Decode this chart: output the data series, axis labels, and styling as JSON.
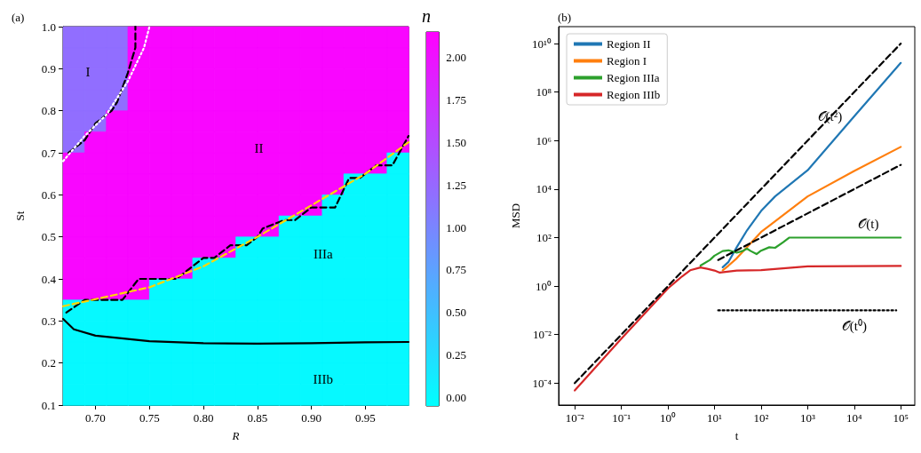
{
  "chart_data": [
    {
      "type": "heatmap",
      "title": "(a)",
      "xlabel": "R",
      "ylabel": "St",
      "clabel": "n",
      "xlim": [
        0.67,
        0.99
      ],
      "xticks": [
        {
          "value": 0.7,
          "label": "0.70"
        },
        {
          "value": 0.75,
          "label": "0.75"
        },
        {
          "value": 0.8,
          "label": "0.80"
        },
        {
          "value": 0.85,
          "label": "0.85"
        },
        {
          "value": 0.9,
          "label": "0.90"
        },
        {
          "value": 0.95,
          "label": "0.95"
        }
      ],
      "ylim": [
        0.1,
        1.0
      ],
      "yticks": [
        0.1,
        0.2,
        0.3,
        0.4,
        0.5,
        0.6,
        0.7,
        0.8,
        0.9,
        {
          "value": 1.0,
          "label": "1.0"
        }
      ],
      "clim": [
        -0.05,
        2.15
      ],
      "cticks": [
        {
          "value": 0,
          "label": "0.00"
        },
        {
          "value": 0.25,
          "label": "0.25"
        },
        {
          "value": 0.5,
          "label": "0.50"
        },
        {
          "value": 0.75,
          "label": "0.75"
        },
        {
          "value": 1,
          "label": "1.00"
        },
        {
          "value": 1.25,
          "label": "1.25"
        },
        {
          "value": 1.5,
          "label": "1.50"
        },
        {
          "value": 1.75,
          "label": "1.75"
        },
        {
          "value": 2,
          "label": "2.00"
        }
      ],
      "cells": [
        [
          1.2,
          1.2,
          1.2,
          2.1,
          2.1,
          2.1,
          2.1,
          2.1,
          2.1,
          2.1,
          2.1,
          2.1,
          2.1,
          2.1,
          2.1,
          2.1
        ],
        [
          1.2,
          1.2,
          1.2,
          2.1,
          2.1,
          2.1,
          2.1,
          2.1,
          2.1,
          2.1,
          2.1,
          2.1,
          2.1,
          2.1,
          2.1,
          2.1
        ],
        [
          1.2,
          1.2,
          1.2,
          2.1,
          2.1,
          2.1,
          2.1,
          2.1,
          2.1,
          2.1,
          2.1,
          2.1,
          2.1,
          2.1,
          2.1,
          2.1
        ],
        [
          1.2,
          1.2,
          1.2,
          2.1,
          2.1,
          2.1,
          2.1,
          2.1,
          2.1,
          2.1,
          2.1,
          2.1,
          2.1,
          2.1,
          2.1,
          2.1
        ],
        [
          1.2,
          1.2,
          2.1,
          2.1,
          2.1,
          2.1,
          2.1,
          2.1,
          2.1,
          2.1,
          2.1,
          2.1,
          2.1,
          2.1,
          2.1,
          2.1
        ],
        [
          1.2,
          2.1,
          2.1,
          2.1,
          2.1,
          2.1,
          2.1,
          2.1,
          2.1,
          2.1,
          2.1,
          2.1,
          2.1,
          2.1,
          2.1,
          2.1
        ],
        [
          2.1,
          2.1,
          2.1,
          2.1,
          2.1,
          2.1,
          2.1,
          2.1,
          2.1,
          2.1,
          2.1,
          2.1,
          2.1,
          2.1,
          2.1,
          0
        ],
        [
          2.1,
          2.1,
          2.1,
          2.1,
          2.1,
          2.1,
          2.1,
          2.1,
          2.1,
          2.1,
          2.1,
          2.1,
          2.1,
          0,
          0,
          0
        ],
        [
          2.1,
          2.1,
          2.1,
          2.1,
          2.1,
          2.1,
          2.1,
          2.1,
          2.1,
          2.1,
          2.1,
          2.1,
          0,
          0,
          0,
          0
        ],
        [
          2.1,
          2.1,
          2.1,
          2.1,
          2.1,
          2.1,
          2.1,
          2.1,
          2.1,
          2.1,
          0,
          0,
          0,
          0,
          0,
          0
        ],
        [
          2.1,
          2.1,
          2.1,
          2.1,
          2.1,
          2.1,
          2.1,
          2.1,
          0,
          0,
          0,
          0,
          0,
          0,
          0,
          0
        ],
        [
          2.1,
          2.1,
          2.1,
          2.1,
          2.1,
          2.1,
          0,
          0,
          0,
          0,
          0,
          0,
          0,
          0,
          0,
          0
        ],
        [
          2.1,
          2.1,
          2.1,
          2.1,
          0,
          0,
          0,
          0,
          0,
          0,
          0,
          0,
          0,
          0,
          0,
          0
        ],
        [
          0,
          0,
          0,
          0,
          0,
          0,
          0,
          0,
          0,
          0,
          0,
          0,
          0,
          0,
          0,
          0
        ],
        [
          0,
          0,
          0,
          0,
          0,
          0,
          0,
          0,
          0,
          0,
          0,
          0,
          0,
          0,
          0,
          0
        ],
        [
          0,
          0,
          0,
          0,
          0,
          0,
          0,
          0,
          0,
          0,
          0,
          0,
          0,
          0,
          0,
          0
        ],
        [
          0,
          0,
          0,
          0,
          0,
          0,
          0,
          0,
          0,
          0,
          0,
          0,
          0,
          0,
          0,
          0
        ],
        [
          0,
          0,
          0,
          0,
          0,
          0,
          0,
          0,
          0,
          0,
          0,
          0,
          0,
          0,
          0,
          0
        ]
      ],
      "series": [
        {
          "type": "line",
          "color": "#000000",
          "line_style": "dashed",
          "x": [
            0.675,
            0.685,
            0.69,
            0.7,
            0.715,
            0.72,
            0.73,
            0.737,
            0.737
          ],
          "values": [
            0.7,
            0.72,
            0.73,
            0.77,
            0.8,
            0.82,
            0.89,
            0.95,
            1.0
          ]
        },
        {
          "type": "line",
          "color": "#ffffff",
          "line_style": "dotted",
          "x": [
            0.67,
            0.69,
            0.71,
            0.73,
            0.745,
            0.75
          ],
          "values": [
            0.68,
            0.74,
            0.79,
            0.87,
            0.95,
            1.0
          ]
        },
        {
          "type": "line",
          "color": "#000000",
          "line_style": "dashed",
          "x": [
            0.673,
            0.69,
            0.725,
            0.74,
            0.775,
            0.79,
            0.8,
            0.81,
            0.825,
            0.84,
            0.85,
            0.855,
            0.875,
            0.885,
            0.9,
            0.922,
            0.935,
            0.945,
            0.96,
            0.975,
            0.99
          ],
          "values": [
            0.32,
            0.35,
            0.35,
            0.4,
            0.4,
            0.43,
            0.45,
            0.45,
            0.48,
            0.48,
            0.5,
            0.52,
            0.54,
            0.54,
            0.57,
            0.57,
            0.64,
            0.64,
            0.67,
            0.67,
            0.74
          ]
        },
        {
          "type": "line",
          "color": "#ffd700",
          "line_style": "dashed",
          "x": [
            0.67,
            0.75,
            0.8,
            0.85,
            0.9,
            0.95,
            0.99
          ],
          "values": [
            0.335,
            0.38,
            0.43,
            0.5,
            0.575,
            0.65,
            0.725
          ]
        },
        {
          "type": "line",
          "color": "#000000",
          "line_style": "solid",
          "x": [
            0.67,
            0.68,
            0.7,
            0.75,
            0.8,
            0.85,
            0.9,
            0.95,
            0.99
          ],
          "values": [
            0.305,
            0.28,
            0.265,
            0.252,
            0.247,
            0.246,
            0.247,
            0.249,
            0.25
          ]
        }
      ],
      "annotations": [
        "I",
        "II",
        "IIIa",
        "IIIb"
      ],
      "marker": "none"
    },
    {
      "type": "line",
      "title": "(b)",
      "xlabel": "t",
      "ylabel": "MSD",
      "log": "xy",
      "legend": "top left",
      "marker": "none",
      "xlim": [
        0.0045,
        200000
      ],
      "xticks": [
        {
          "value": 0.01,
          "label": "10⁻²"
        },
        {
          "value": 0.1,
          "label": "10⁻¹"
        },
        {
          "value": 1,
          "label": "10⁰"
        },
        {
          "value": 10,
          "label": "10¹"
        },
        {
          "value": 100,
          "label": "10²"
        },
        {
          "value": 1000,
          "label": "10³"
        },
        {
          "value": 10000,
          "label": "10⁴"
        },
        {
          "value": 100000,
          "label": "10⁵"
        }
      ],
      "ylim": [
        1.25e-05,
        50000000000
      ],
      "yticks": [
        {
          "value": 0.0001,
          "label": "10⁻⁴"
        },
        {
          "value": 0.01,
          "label": "10⁻²"
        },
        {
          "value": 1,
          "label": "10⁰"
        },
        {
          "value": 100,
          "label": "10²"
        },
        {
          "value": 10000,
          "label": "10⁴"
        },
        {
          "value": 1000000,
          "label": "10⁶"
        },
        {
          "value": 100000000,
          "label": "10⁸"
        },
        {
          "value": 10000000000,
          "label": "10¹⁰"
        }
      ],
      "series": [
        {
          "name": "Region II",
          "color": "#1f77b4",
          "x": [
            15,
            20,
            30,
            50,
            100,
            200,
            1000,
            10000,
            100000
          ],
          "values": [
            6,
            10,
            40,
            200,
            1250,
            5000,
            60000,
            10000000,
            1600000000
          ]
        },
        {
          "name": "Region I",
          "color": "#ff7f0e",
          "x": [
            15,
            20,
            30,
            100,
            1000,
            10000,
            100000
          ],
          "values": [
            4.5,
            7,
            14,
            170,
            5000,
            56000,
            550000
          ]
        },
        {
          "name": "Region IIIa",
          "color": "#2ca02c",
          "x": [
            5,
            8,
            10,
            15,
            20,
            30,
            40,
            50,
            60,
            80,
            100,
            150,
            200,
            300,
            400,
            100000
          ],
          "values": [
            7,
            12,
            18,
            28,
            30,
            24,
            28,
            35,
            28,
            21,
            29,
            40,
            38,
            65,
            100,
            100
          ]
        },
        {
          "name": "Region IIIb",
          "color": "#d62728",
          "x": [
            0.01,
            0.1,
            1,
            2,
            3,
            5,
            7,
            10,
            13,
            30,
            100,
            1000,
            100000
          ],
          "values": [
            5e-05,
            0.0068,
            0.8,
            2.5,
            4.5,
            5.9,
            5.2,
            4.4,
            3.6,
            4.4,
            4.6,
            6.5,
            6.8
          ]
        },
        {
          "type": "line",
          "color": "#000000",
          "line_style": "dashed",
          "x": [
            0.01,
            100000
          ],
          "values": [
            0.0001,
            10000000000
          ]
        },
        {
          "type": "line",
          "color": "#000000",
          "line_style": "dashed",
          "x": [
            12,
            100000
          ],
          "values": [
            12,
            100000
          ]
        },
        {
          "type": "line",
          "color": "#000000",
          "line_style": "dotted",
          "x": [
            12,
            80000
          ],
          "values": [
            0.1,
            0.1
          ]
        }
      ],
      "annotations": [
        {
          "text": "𝒪(t²)",
          "x": 3000,
          "y": 10000000
        },
        "𝒪(t)",
        "𝒪(t⁰)"
      ]
    }
  ]
}
